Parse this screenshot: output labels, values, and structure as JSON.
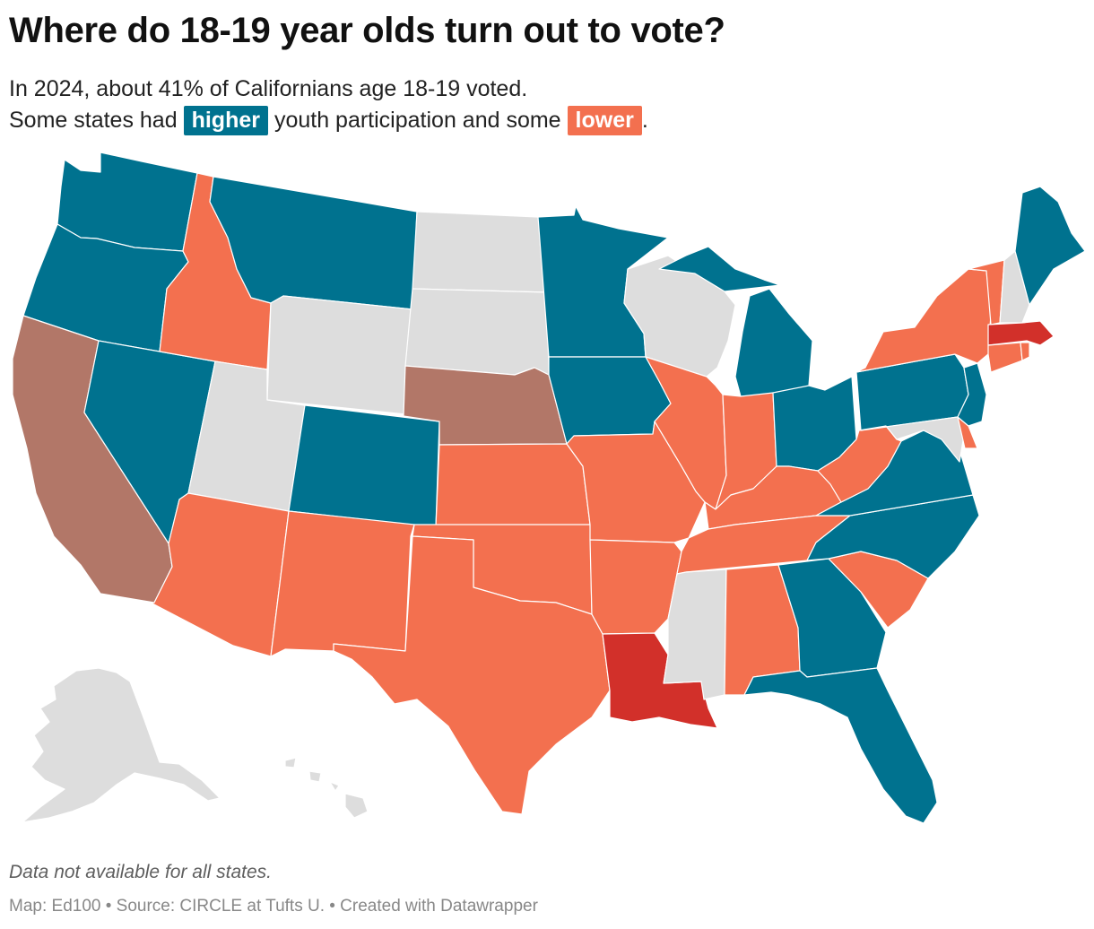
{
  "title": "Where do 18-19 year olds turn out to vote?",
  "subtitle": {
    "line1": "In 2024, about 41% of Californians age 18-19 voted.",
    "line2_before": "Some states had",
    "higher_label": "higher",
    "line2_middle": "youth participation and some",
    "lower_label": "lower",
    "line2_end": "."
  },
  "colors": {
    "higher": "#00728f",
    "lower": "#f3704f",
    "much_lower": "#d2302a",
    "california": "#b27768",
    "no_data": "#dddddd"
  },
  "map_data": {
    "reference_state": "California",
    "reference_turnout_pct": 41,
    "categories": {
      "higher": [
        "Washington",
        "Oregon",
        "Nevada",
        "Montana",
        "Colorado",
        "Minnesota",
        "Iowa",
        "Michigan",
        "Ohio",
        "Pennsylvania",
        "New Jersey",
        "Virginia",
        "North Carolina",
        "Georgia",
        "Florida",
        "Maine"
      ],
      "lower": [
        "Idaho",
        "Arizona",
        "New Mexico",
        "Texas",
        "Kansas",
        "Oklahoma",
        "Missouri",
        "Arkansas",
        "Illinois",
        "Indiana",
        "Kentucky",
        "Tennessee",
        "Alabama",
        "West Virginia",
        "South Carolina",
        "New York",
        "Vermont",
        "Connecticut",
        "Delaware"
      ],
      "much_lower": [
        "Louisiana",
        "Massachusetts"
      ],
      "reference": [
        "California",
        "Nebraska"
      ],
      "no_data": [
        "Utah",
        "Wyoming",
        "North Dakota",
        "South Dakota",
        "Wisconsin",
        "Mississippi",
        "New Hampshire",
        "Maryland",
        "Alaska",
        "Hawaii"
      ]
    }
  },
  "note": "Data not available for all states.",
  "footer": "Map: Ed100 • Source: CIRCLE at Tufts U. • Created with Datawrapper"
}
